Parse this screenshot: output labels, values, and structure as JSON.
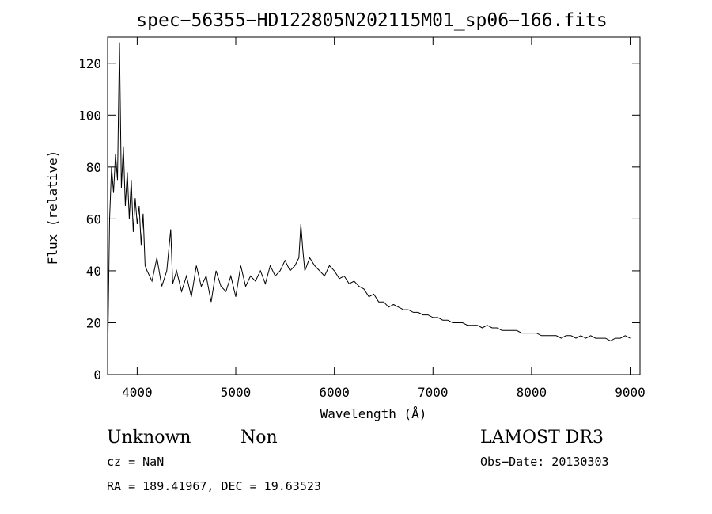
{
  "chart_data": {
    "type": "line",
    "title": "spec−56355−HD122805N202115M01_sp06−166.fits",
    "xlabel": "Wavelength (Å)",
    "ylabel": "Flux (relative)",
    "xlim": [
      3700,
      9100
    ],
    "ylim": [
      0,
      130
    ],
    "x_ticks": [
      4000,
      5000,
      6000,
      7000,
      8000,
      9000
    ],
    "x_tick_labels": [
      "4000",
      "5000",
      "6000",
      "7000",
      "8000",
      "9000"
    ],
    "y_ticks": [
      0,
      20,
      40,
      60,
      80,
      100,
      120
    ],
    "y_tick_labels": [
      "0",
      "20",
      "40",
      "60",
      "80",
      "100",
      "120"
    ],
    "grid": false,
    "line_color": "#000000",
    "series": [
      {
        "x": [
          3700,
          3720,
          3740,
          3760,
          3780,
          3800,
          3820,
          3840,
          3860,
          3880,
          3900,
          3920,
          3940,
          3960,
          3980,
          4000,
          4020,
          4040,
          4060,
          4080,
          4100,
          4150,
          4200,
          4250,
          4300,
          4340,
          4360,
          4400,
          4450,
          4500,
          4550,
          4600,
          4650,
          4700,
          4750,
          4800,
          4850,
          4900,
          4950,
          5000,
          5050,
          5100,
          5150,
          5200,
          5250,
          5300,
          5350,
          5400,
          5450,
          5500,
          5550,
          5600,
          5640,
          5660,
          5680,
          5700,
          5750,
          5800,
          5850,
          5900,
          5950,
          6000,
          6050,
          6100,
          6150,
          6200,
          6250,
          6300,
          6350,
          6400,
          6450,
          6500,
          6550,
          6600,
          6650,
          6700,
          6750,
          6800,
          6850,
          6900,
          6950,
          7000,
          7050,
          7100,
          7150,
          7200,
          7250,
          7300,
          7350,
          7400,
          7450,
          7500,
          7550,
          7600,
          7650,
          7700,
          7750,
          7800,
          7850,
          7900,
          7950,
          8000,
          8050,
          8100,
          8150,
          8200,
          8250,
          8300,
          8350,
          8400,
          8450,
          8500,
          8550,
          8600,
          8650,
          8700,
          8750,
          8800,
          8850,
          8900,
          8950,
          9000
        ],
        "values": [
          5,
          60,
          80,
          70,
          85,
          75,
          128,
          72,
          88,
          65,
          78,
          60,
          75,
          55,
          68,
          58,
          65,
          50,
          62,
          42,
          40,
          36,
          45,
          34,
          40,
          56,
          35,
          40,
          32,
          38,
          30,
          42,
          34,
          38,
          28,
          40,
          34,
          32,
          38,
          30,
          42,
          34,
          38,
          36,
          40,
          35,
          42,
          38,
          40,
          44,
          40,
          42,
          45,
          58,
          48,
          40,
          45,
          42,
          40,
          38,
          42,
          40,
          37,
          38,
          35,
          36,
          34,
          33,
          30,
          31,
          28,
          28,
          26,
          27,
          26,
          25,
          25,
          24,
          24,
          23,
          23,
          22,
          22,
          21,
          21,
          20,
          20,
          20,
          19,
          19,
          19,
          18,
          19,
          18,
          18,
          17,
          17,
          17,
          17,
          16,
          16,
          16,
          16,
          15,
          15,
          15,
          15,
          14,
          15,
          15,
          14,
          15,
          14,
          15,
          14,
          14,
          14,
          13,
          14,
          14,
          15,
          14
        ]
      }
    ]
  },
  "info": {
    "class_label": "Unknown",
    "subclass_label": "Non",
    "survey": "LAMOST DR3",
    "cz": "cz = NaN",
    "obs_date": "Obs−Date: 20130303",
    "coords": "RA = 189.41967, DEC =  19.63523"
  }
}
